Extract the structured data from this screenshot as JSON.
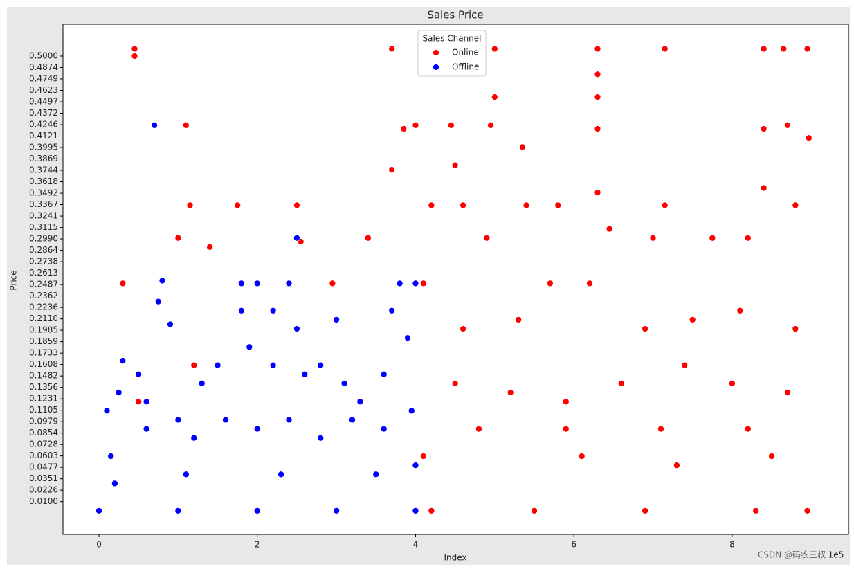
{
  "chart_data": {
    "type": "scatter",
    "title": "Sales Price",
    "x_label": "Index",
    "y_label": "Price",
    "x_offset": "1e5",
    "legend_title": "Sales Channel",
    "legend_position": "upper center",
    "watermark": "CSDN @码农三叔",
    "xlim": [
      -0.455,
      9.47
    ],
    "xticks": [
      0,
      2,
      4,
      6,
      8
    ],
    "ylim": [
      -0.026,
      0.535
    ],
    "yticks": [
      {
        "value": 0.01,
        "label": "0.0100"
      },
      {
        "value": 0.0226,
        "label": "0.0226"
      },
      {
        "value": 0.0351,
        "label": "0.0351"
      },
      {
        "value": 0.0477,
        "label": "0.0477"
      },
      {
        "value": 0.0603,
        "label": "0.0603"
      },
      {
        "value": 0.0728,
        "label": "0.0728"
      },
      {
        "value": 0.0854,
        "label": "0.0854"
      },
      {
        "value": 0.0979,
        "label": "0.0979"
      },
      {
        "value": 0.1105,
        "label": "0.1105"
      },
      {
        "value": 0.1231,
        "label": "0.1231"
      },
      {
        "value": 0.1356,
        "label": "0.1356"
      },
      {
        "value": 0.1482,
        "label": "0.1482"
      },
      {
        "value": 0.1608,
        "label": "0.1608"
      },
      {
        "value": 0.1733,
        "label": "0.1733"
      },
      {
        "value": 0.1859,
        "label": "0.1859"
      },
      {
        "value": 0.1985,
        "label": "0.1985"
      },
      {
        "value": 0.211,
        "label": "0.2110"
      },
      {
        "value": 0.2236,
        "label": "0.2236"
      },
      {
        "value": 0.2362,
        "label": "0.2362"
      },
      {
        "value": 0.2487,
        "label": "0.2487"
      },
      {
        "value": 0.2613,
        "label": "0.2613"
      },
      {
        "value": 0.2738,
        "label": "0.2738"
      },
      {
        "value": 0.2864,
        "label": "0.2864"
      },
      {
        "value": 0.299,
        "label": "0.2990"
      },
      {
        "value": 0.3115,
        "label": "0.3115"
      },
      {
        "value": 0.3241,
        "label": "0.3241"
      },
      {
        "value": 0.3367,
        "label": "0.3367"
      },
      {
        "value": 0.3492,
        "label": "0.3492"
      },
      {
        "value": 0.3618,
        "label": "0.3618"
      },
      {
        "value": 0.3744,
        "label": "0.3744"
      },
      {
        "value": 0.3869,
        "label": "0.3869"
      },
      {
        "value": 0.3995,
        "label": "0.3995"
      },
      {
        "value": 0.4121,
        "label": "0.4121"
      },
      {
        "value": 0.4246,
        "label": "0.4246"
      },
      {
        "value": 0.4372,
        "label": "0.4372"
      },
      {
        "value": 0.4497,
        "label": "0.4497"
      },
      {
        "value": 0.4623,
        "label": "0.4623"
      },
      {
        "value": 0.4749,
        "label": "0.4749"
      },
      {
        "value": 0.4874,
        "label": "0.4874"
      },
      {
        "value": 0.5,
        "label": "0.5000"
      }
    ],
    "series": [
      {
        "name": "Online",
        "color": "#ff0000",
        "x": [
          0.45,
          0.45,
          1.1,
          1.15,
          1.75,
          2.5,
          2.55,
          3.7,
          3.7,
          3.85,
          4.0,
          4.45,
          4.5,
          4.95,
          5.0,
          5.0,
          5.35,
          5.4,
          6.3,
          6.3,
          6.3,
          6.3,
          6.3,
          7.15,
          7.15,
          8.4,
          8.4,
          8.4,
          8.65,
          8.7,
          8.95,
          8.97,
          0.3,
          1.0,
          1.4,
          2.95,
          3.4,
          4.2,
          4.6,
          4.9,
          5.8,
          6.45,
          7.0,
          7.75,
          8.2,
          8.8,
          4.1,
          4.6,
          5.3,
          5.7,
          6.2,
          6.9,
          7.5,
          8.1,
          8.8,
          4.5,
          5.2,
          5.9,
          6.6,
          7.4,
          8.0,
          8.7,
          4.8,
          5.9,
          7.1,
          8.2,
          4.1,
          6.1,
          7.3,
          8.5,
          1.2,
          0.5,
          4.2,
          5.5,
          6.9,
          8.3,
          8.95
        ],
        "values": [
          0.508,
          0.5,
          0.424,
          0.336,
          0.336,
          0.336,
          0.296,
          0.508,
          0.375,
          0.42,
          0.424,
          0.424,
          0.38,
          0.424,
          0.508,
          0.455,
          0.4,
          0.336,
          0.508,
          0.48,
          0.455,
          0.42,
          0.35,
          0.508,
          0.336,
          0.508,
          0.42,
          0.355,
          0.508,
          0.424,
          0.508,
          0.41,
          0.25,
          0.3,
          0.29,
          0.25,
          0.3,
          0.336,
          0.336,
          0.3,
          0.336,
          0.31,
          0.3,
          0.3,
          0.3,
          0.336,
          0.25,
          0.2,
          0.21,
          0.25,
          0.25,
          0.2,
          0.21,
          0.22,
          0.2,
          0.14,
          0.13,
          0.12,
          0.14,
          0.16,
          0.14,
          0.13,
          0.09,
          0.09,
          0.09,
          0.09,
          0.06,
          0.06,
          0.05,
          0.06,
          0.16,
          0.12,
          0,
          0,
          0,
          0,
          0
        ]
      },
      {
        "name": "Offline",
        "color": "#0000ff",
        "x": [
          0.7,
          0.8,
          0.75,
          0.9,
          0.3,
          0.25,
          0.5,
          0.6,
          1.0,
          1.3,
          1.5,
          1.8,
          1.8,
          1.9,
          2.0,
          2.2,
          2.2,
          2.4,
          2.5,
          2.5,
          2.6,
          2.8,
          3.0,
          3.1,
          3.3,
          3.6,
          3.7,
          3.8,
          3.9,
          4.0,
          0.1,
          0.15,
          0.6,
          1.2,
          1.6,
          2.0,
          2.4,
          2.8,
          3.2,
          3.6,
          3.95,
          0.2,
          1.1,
          2.3,
          3.5,
          4.0,
          0,
          1.0,
          2.0,
          3.0,
          4.0
        ],
        "values": [
          0.424,
          0.253,
          0.23,
          0.205,
          0.165,
          0.13,
          0.15,
          0.12,
          0.1,
          0.14,
          0.16,
          0.25,
          0.22,
          0.18,
          0.25,
          0.22,
          0.16,
          0.25,
          0.3,
          0.2,
          0.15,
          0.16,
          0.21,
          0.14,
          0.12,
          0.15,
          0.22,
          0.25,
          0.19,
          0.25,
          0.11,
          0.06,
          0.09,
          0.08,
          0.1,
          0.09,
          0.1,
          0.08,
          0.1,
          0.09,
          0.11,
          0.03,
          0.04,
          0.04,
          0.04,
          0.05,
          0,
          0,
          0,
          0,
          0
        ]
      }
    ]
  }
}
